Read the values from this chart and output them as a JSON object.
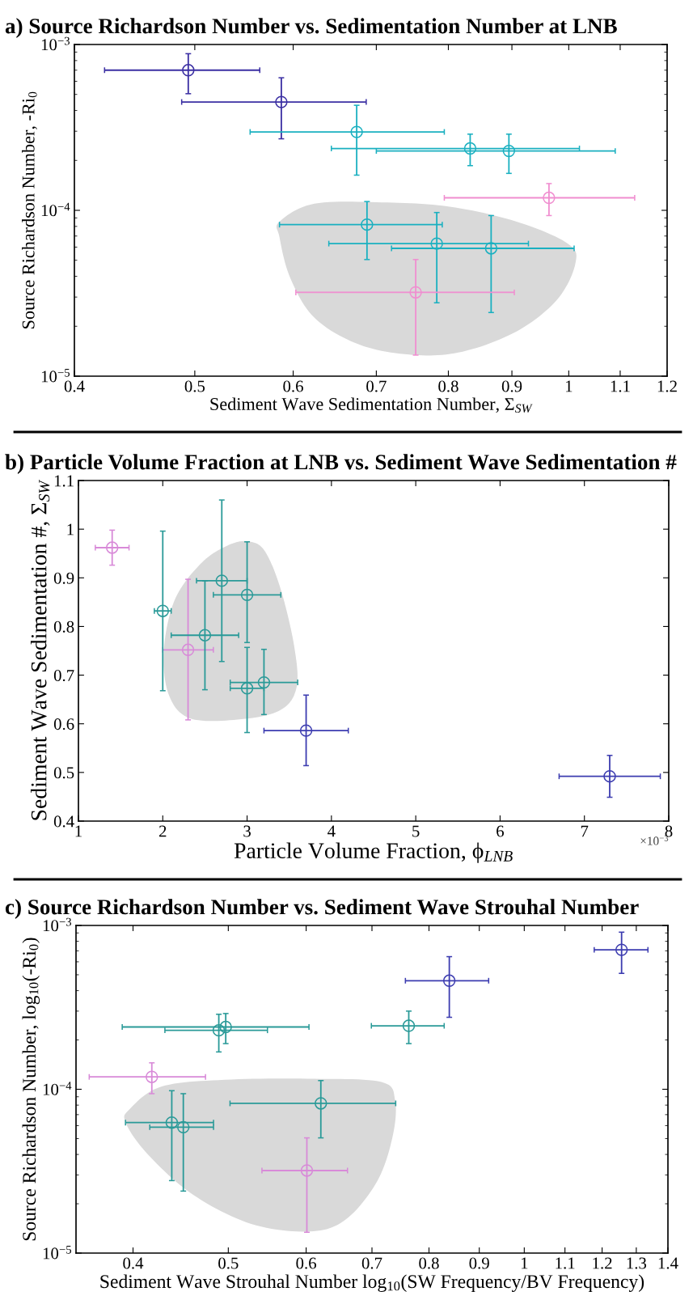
{
  "chart_data": [
    {
      "type": "scatter",
      "title": "a) Source Richardson Number vs. Sedimentation Number at LNB",
      "xlabel": "Sediment Wave Sedimentation Number, Σ$_{SW}$",
      "ylabel": "Source Richardson Number, -Ri$_{0}$",
      "log": "xy",
      "marker": "circle",
      "grid": false,
      "legend": false,
      "xlim": [
        0.4,
        1.2
      ],
      "xticks": [
        0.4,
        0.5,
        0.6,
        0.7,
        0.8,
        0.9,
        1,
        1.1,
        1.2
      ],
      "ylim": [
        1e-05,
        0.001
      ],
      "yticks": [
        {
          "value": 1e-05,
          "label": "10$^{−5}$"
        },
        {
          "value": 0.0001,
          "label": "10$^{−4}$"
        },
        {
          "value": 0.001,
          "label": "10$^{−3}$"
        }
      ],
      "series": [
        {
          "color": "#3b2fa3",
          "x": [
            0.494,
            0.587
          ],
          "values": [
            0.0007,
            0.00045
          ],
          "xerrors": [
            [
              0.423,
              0.564
            ],
            [
              0.488,
              0.687
            ]
          ],
          "errors": [
            [
              0.000505,
              0.00088
            ],
            [
              0.00027,
              0.00063
            ]
          ]
        },
        {
          "color": "#1ab0c0",
          "x": [
            0.675,
            0.833,
            0.895,
            0.688,
            0.783,
            0.866
          ],
          "values": [
            0.000297,
            0.000236,
            0.000228,
            8.2e-05,
            6.3e-05,
            5.9e-05
          ],
          "xerrors": [
            [
              0.554,
              0.794
            ],
            [
              0.644,
              1.02
            ],
            [
              0.7,
              1.09
            ],
            [
              0.585,
              0.791
            ],
            [
              0.641,
              0.928
            ],
            [
              0.72,
              1.01
            ]
          ],
          "errors": [
            [
              0.000163,
              0.00043
            ],
            [
              0.000186,
              0.000288
            ],
            [
              0.000167,
              0.000288
            ],
            [
              5.05e-05,
              0.000113
            ],
            [
              2.77e-05,
              9.7e-05
            ],
            [
              2.42e-05,
              9.3e-05
            ]
          ]
        },
        {
          "color": "#f08ed0",
          "x": [
            0.964,
            0.753
          ],
          "values": [
            0.000119,
            3.2e-05
          ],
          "xerrors": [
            [
              0.794,
              1.13
            ],
            [
              0.603,
              0.904
            ]
          ],
          "errors": [
            [
              9.3e-05,
              0.000145
            ],
            [
              1.34e-05,
              5.05e-05
            ]
          ]
        }
      ]
    },
    {
      "type": "scatter",
      "title": "b) Particle Volume Fraction at LNB vs. Sediment Wave Sedimentation #",
      "xlabel": "Particle Volume Fraction, ϕ$_{LNB}$",
      "ylabel": "Sediment Wave Sedimentation #, Σ$_{SW}$",
      "marker": "circle",
      "grid": false,
      "legend": false,
      "annotations": [
        "×10$^{−3}$"
      ],
      "xlim": [
        1,
        8
      ],
      "xticks": [
        1,
        2,
        3,
        4,
        5,
        6,
        7,
        8
      ],
      "ylim": [
        0.4,
        1.1
      ],
      "yticks": [
        0.4,
        0.5,
        0.6,
        0.7,
        0.8,
        0.9,
        1,
        1.1
      ],
      "series": [
        {
          "color": "#d88ad8",
          "x": [
            1.4,
            2.3
          ],
          "values": [
            0.962,
            0.752
          ],
          "xerrors": [
            [
              1.2,
              1.6
            ],
            [
              2.0,
              2.6
            ]
          ],
          "errors": [
            [
              0.926,
              0.998
            ],
            [
              0.608,
              0.897
            ]
          ]
        },
        {
          "color": "#2a9a98",
          "x": [
            2.0,
            2.5,
            2.7,
            3.0,
            3.0,
            3.2
          ],
          "values": [
            0.832,
            0.782,
            0.894,
            0.865,
            0.673,
            0.685
          ],
          "xerrors": [
            [
              1.9,
              2.1
            ],
            [
              2.1,
              2.9
            ],
            [
              2.4,
              3.0
            ],
            [
              2.6,
              3.4
            ],
            [
              2.8,
              3.2
            ],
            [
              2.8,
              3.6
            ]
          ],
          "errors": [
            [
              0.668,
              0.996
            ],
            [
              0.67,
              0.894
            ],
            [
              0.728,
              1.06
            ],
            [
              0.767,
              0.974
            ],
            [
              0.582,
              0.757
            ],
            [
              0.619,
              0.753
            ]
          ]
        },
        {
          "color": "#3c3cb0",
          "x": [
            3.7,
            7.3
          ],
          "values": [
            0.586,
            0.492
          ],
          "xerrors": [
            [
              3.2,
              4.2
            ],
            [
              6.7,
              7.9
            ]
          ],
          "errors": [
            [
              0.514,
              0.659
            ],
            [
              0.449,
              0.535
            ]
          ]
        }
      ]
    },
    {
      "type": "scatter",
      "title": "c) Source Richardson Number vs. Sediment Wave Strouhal Number",
      "xlabel": "Sediment Wave Strouhal Number log$_{10}$(SW Frequency/BV Frequency)",
      "ylabel": "Source Richardson Number, log$_{10}$(-Ri$_{0}$)",
      "log": "xy",
      "marker": "circle",
      "grid": false,
      "legend": false,
      "xlim": [
        0.35,
        1.4
      ],
      "xticks": [
        0.4,
        0.5,
        0.6,
        0.7,
        0.8,
        0.9,
        1,
        1.1,
        1.2,
        1.3,
        1.4
      ],
      "ylim": [
        1e-05,
        0.001
      ],
      "yticks": [
        {
          "value": 1e-05,
          "label": "10$^{−5}$"
        },
        {
          "value": 0.0001,
          "label": "10$^{−4}$"
        },
        {
          "value": 0.001,
          "label": "10$^{−3}$"
        }
      ],
      "series": [
        {
          "color": "#3c3cb0",
          "x": [
            1.256,
            0.839
          ],
          "values": [
            0.00071,
            0.00046
          ],
          "xerrors": [
            [
              1.178,
              1.336
            ],
            [
              0.757,
              0.92
            ]
          ],
          "errors": [
            [
              0.00051,
              0.00091
            ],
            [
              0.000275,
              0.000645
            ]
          ]
        },
        {
          "color": "#2a9a98",
          "x": [
            0.763,
            0.497,
            0.489,
            0.621,
            0.438,
            0.45
          ],
          "values": [
            0.000244,
            0.00024,
            0.000229,
            8.2e-05,
            6.26e-05,
            5.87e-05
          ],
          "xerrors": [
            [
              0.699,
              0.829
            ],
            [
              0.39,
              0.604
            ],
            [
              0.431,
              0.548
            ],
            [
              0.502,
              0.74
            ],
            [
              0.393,
              0.483
            ],
            [
              0.416,
              0.483
            ]
          ],
          "errors": [
            [
              0.00019,
              0.0003
            ],
            [
              0.00019,
              0.00029
            ],
            [
              0.000169,
              0.000287
            ],
            [
              5.05e-05,
              0.000113
            ],
            [
              2.77e-05,
              9.8e-05
            ],
            [
              2.39e-05,
              9.4e-05
            ]
          ]
        },
        {
          "color": "#d88ad8",
          "x": [
            0.418,
            0.601
          ],
          "values": [
            0.000119,
            3.19e-05
          ],
          "xerrors": [
            [
              0.361,
              0.474
            ],
            [
              0.541,
              0.661
            ]
          ],
          "errors": [
            [
              9.4e-05,
              0.000145
            ],
            [
              1.34e-05,
              5.05e-05
            ]
          ]
        }
      ]
    }
  ]
}
